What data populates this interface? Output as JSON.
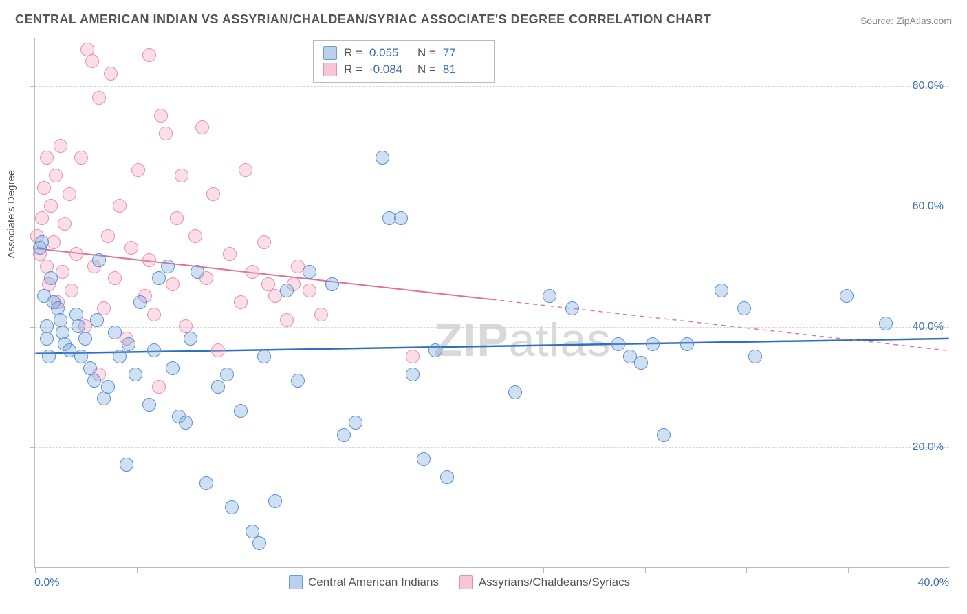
{
  "title": "CENTRAL AMERICAN INDIAN VS ASSYRIAN/CHALDEAN/SYRIAC ASSOCIATE'S DEGREE CORRELATION CHART",
  "source": "Source: ZipAtlas.com",
  "watermark_bold": "ZIP",
  "watermark_rest": "atlas",
  "y_axis_title": "Associate's Degree",
  "chart": {
    "type": "scatter",
    "background_color": "#ffffff",
    "grid_color": "#d5d5d5",
    "axis_color": "#bbbbbb",
    "xlim": [
      0,
      40
    ],
    "ylim": [
      0,
      88
    ],
    "x_min_label": "0.0%",
    "x_max_label": "40.0%",
    "y_ticks": [
      {
        "v": 20,
        "label": "20.0%"
      },
      {
        "v": 40,
        "label": "40.0%"
      },
      {
        "v": 60,
        "label": "60.0%"
      },
      {
        "v": 80,
        "label": "80.0%"
      }
    ],
    "x_tick_positions": [
      0,
      4.44,
      8.89,
      13.33,
      17.78,
      22.22,
      26.67,
      31.11,
      35.56,
      40
    ],
    "marker_radius": 10,
    "marker_border_width": 1.5,
    "series": [
      {
        "id": "blue",
        "label": "Central American Indians",
        "fill_color": "rgba(120,165,220,0.35)",
        "stroke_color": "#5a8fd6",
        "swatch_fill": "#b9d1ef",
        "swatch_border": "#6a9fd8",
        "r_value": "0.055",
        "n_value": "77",
        "trend": {
          "y_at_xmin": 35.5,
          "y_at_xmax": 38.0,
          "solid_to_x": 40,
          "color": "#2f6fc0",
          "width": 2.5
        },
        "points": [
          [
            0.2,
            53
          ],
          [
            0.3,
            54
          ],
          [
            0.4,
            45
          ],
          [
            0.5,
            40
          ],
          [
            0.5,
            38
          ],
          [
            0.6,
            35
          ],
          [
            0.7,
            48
          ],
          [
            0.8,
            44
          ],
          [
            1.0,
            43
          ],
          [
            1.1,
            41
          ],
          [
            1.2,
            39
          ],
          [
            1.3,
            37
          ],
          [
            1.5,
            36
          ],
          [
            1.8,
            42
          ],
          [
            1.9,
            40
          ],
          [
            2.0,
            35
          ],
          [
            2.2,
            38
          ],
          [
            2.4,
            33
          ],
          [
            2.6,
            31
          ],
          [
            2.7,
            41
          ],
          [
            2.8,
            51
          ],
          [
            3.0,
            28
          ],
          [
            3.2,
            30
          ],
          [
            3.5,
            39
          ],
          [
            3.7,
            35
          ],
          [
            4.0,
            17
          ],
          [
            4.1,
            37
          ],
          [
            4.4,
            32
          ],
          [
            4.6,
            44
          ],
          [
            5.0,
            27
          ],
          [
            5.2,
            36
          ],
          [
            5.4,
            48
          ],
          [
            5.8,
            50
          ],
          [
            6.0,
            33
          ],
          [
            6.3,
            25
          ],
          [
            6.6,
            24
          ],
          [
            6.8,
            38
          ],
          [
            7.1,
            49
          ],
          [
            7.5,
            14
          ],
          [
            8.0,
            30
          ],
          [
            8.4,
            32
          ],
          [
            8.6,
            10
          ],
          [
            9.0,
            26
          ],
          [
            9.5,
            6
          ],
          [
            9.8,
            4
          ],
          [
            10.0,
            35
          ],
          [
            10.5,
            11
          ],
          [
            11.0,
            46
          ],
          [
            11.5,
            31
          ],
          [
            12.0,
            49
          ],
          [
            13.0,
            47
          ],
          [
            13.5,
            22
          ],
          [
            14.0,
            24
          ],
          [
            15.2,
            68
          ],
          [
            15.5,
            58
          ],
          [
            16.0,
            58
          ],
          [
            16.5,
            32
          ],
          [
            17.0,
            18
          ],
          [
            17.5,
            36
          ],
          [
            18.0,
            15
          ],
          [
            21.0,
            29
          ],
          [
            22.5,
            45
          ],
          [
            23.5,
            43
          ],
          [
            25.5,
            37
          ],
          [
            26.0,
            35
          ],
          [
            26.5,
            34
          ],
          [
            27.0,
            37
          ],
          [
            27.5,
            22
          ],
          [
            28.5,
            37
          ],
          [
            30.0,
            46
          ],
          [
            31.0,
            43
          ],
          [
            31.5,
            35
          ],
          [
            35.5,
            45
          ],
          [
            37.2,
            40.5
          ]
        ]
      },
      {
        "id": "pink",
        "label": "Assyrians/Chaldeans/Syriacs",
        "fill_color": "rgba(244,160,185,0.35)",
        "stroke_color": "#ea8fae",
        "swatch_fill": "#f6c6d5",
        "swatch_border": "#ea8fae",
        "r_value": "-0.084",
        "n_value": "81",
        "trend": {
          "y_at_xmin": 53,
          "y_at_xmax": 36,
          "solid_to_x": 20,
          "color": "#e36f96",
          "width": 2
        },
        "points": [
          [
            0.1,
            55
          ],
          [
            0.2,
            52
          ],
          [
            0.3,
            58
          ],
          [
            0.4,
            63
          ],
          [
            0.5,
            50
          ],
          [
            0.5,
            68
          ],
          [
            0.6,
            47
          ],
          [
            0.7,
            60
          ],
          [
            0.8,
            54
          ],
          [
            0.9,
            65
          ],
          [
            1.0,
            44
          ],
          [
            1.1,
            70
          ],
          [
            1.2,
            49
          ],
          [
            1.3,
            57
          ],
          [
            1.5,
            62
          ],
          [
            1.6,
            46
          ],
          [
            1.8,
            52
          ],
          [
            2.0,
            68
          ],
          [
            2.2,
            40
          ],
          [
            2.3,
            86
          ],
          [
            2.5,
            84
          ],
          [
            2.6,
            50
          ],
          [
            2.8,
            78
          ],
          [
            2.8,
            32
          ],
          [
            3.0,
            43
          ],
          [
            3.2,
            55
          ],
          [
            3.3,
            82
          ],
          [
            3.5,
            48
          ],
          [
            3.7,
            60
          ],
          [
            4.0,
            38
          ],
          [
            4.2,
            53
          ],
          [
            4.5,
            66
          ],
          [
            4.8,
            45
          ],
          [
            5.0,
            85
          ],
          [
            5.0,
            51
          ],
          [
            5.2,
            42
          ],
          [
            5.4,
            30
          ],
          [
            5.5,
            75
          ],
          [
            5.7,
            72
          ],
          [
            6.0,
            47
          ],
          [
            6.2,
            58
          ],
          [
            6.4,
            65
          ],
          [
            6.6,
            40
          ],
          [
            7.0,
            55
          ],
          [
            7.3,
            73
          ],
          [
            7.5,
            48
          ],
          [
            7.8,
            62
          ],
          [
            8.0,
            36
          ],
          [
            8.5,
            52
          ],
          [
            9.0,
            44
          ],
          [
            9.2,
            66
          ],
          [
            9.5,
            49
          ],
          [
            10.0,
            54
          ],
          [
            10.2,
            47
          ],
          [
            10.5,
            45
          ],
          [
            11.0,
            41
          ],
          [
            11.3,
            47
          ],
          [
            11.5,
            50
          ],
          [
            12.0,
            46
          ],
          [
            12.5,
            42
          ],
          [
            16.5,
            35
          ]
        ]
      }
    ]
  },
  "legend_top": {
    "r_label": "R =",
    "n_label": "N ="
  }
}
